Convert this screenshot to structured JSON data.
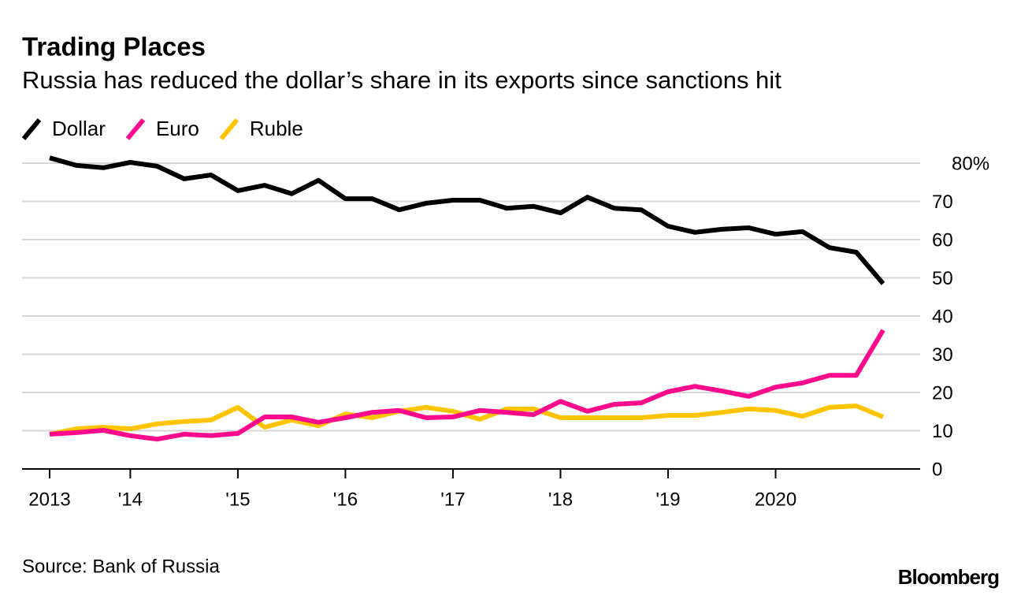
{
  "chart_data": {
    "type": "line",
    "title": "Trading Places",
    "subtitle": "Russia has reduced the dollar’s share in its exports since sanctions hit",
    "source": "Source: Bank of Russia",
    "brand": "Bloomberg",
    "categories": [
      "2013",
      null,
      null,
      "'14",
      null,
      null,
      null,
      "'15",
      null,
      null,
      null,
      "'16",
      null,
      null,
      null,
      "'17",
      null,
      null,
      null,
      "'18",
      null,
      null,
      null,
      "'19",
      null,
      null,
      null,
      "2020",
      null,
      null,
      null,
      null
    ],
    "series": [
      {
        "name": "Dollar",
        "color": "#000000",
        "values": [
          81.4,
          79.4,
          78.8,
          80.2,
          79.2,
          75.9,
          76.9,
          72.8,
          74.2,
          72,
          75.5,
          70.7,
          70.7,
          67.8,
          69.5,
          70.3,
          70.3,
          68.2,
          68.7,
          67,
          71.1,
          68.2,
          67.8,
          63.5,
          61.9,
          62.7,
          63.1,
          61.4,
          62.1,
          57.9,
          56.7,
          48.5
        ]
      },
      {
        "name": "Euro",
        "color": "#ff0a8c",
        "values": [
          9.1,
          9.5,
          10.1,
          8.7,
          7.8,
          9.1,
          8.7,
          9.3,
          13.6,
          13.6,
          12.2,
          13.4,
          14.8,
          15.3,
          13.4,
          13.6,
          15.3,
          14.8,
          14.2,
          17.7,
          15.1,
          16.9,
          17.3,
          20.2,
          21.6,
          20.4,
          19,
          21.4,
          22.5,
          24.5,
          24.5,
          36.3
        ]
      },
      {
        "name": "Ruble",
        "color": "#ffc400",
        "values": [
          9.1,
          10.5,
          10.9,
          10.5,
          11.8,
          12.4,
          12.8,
          16.1,
          10.9,
          12.8,
          11.3,
          14.4,
          13.4,
          15.1,
          16.1,
          15.1,
          13,
          15.7,
          15.7,
          13.4,
          13.4,
          13.4,
          13.4,
          14,
          14,
          14.8,
          15.7,
          15.3,
          13.8,
          16.1,
          16.5,
          13.6
        ]
      }
    ],
    "ylim": [
      0,
      80
    ],
    "yticks": [
      0,
      10,
      20,
      30,
      40,
      50,
      60,
      70,
      {
        "value": 80,
        "label": "80%"
      }
    ],
    "grid": true,
    "legend": "top-left"
  }
}
